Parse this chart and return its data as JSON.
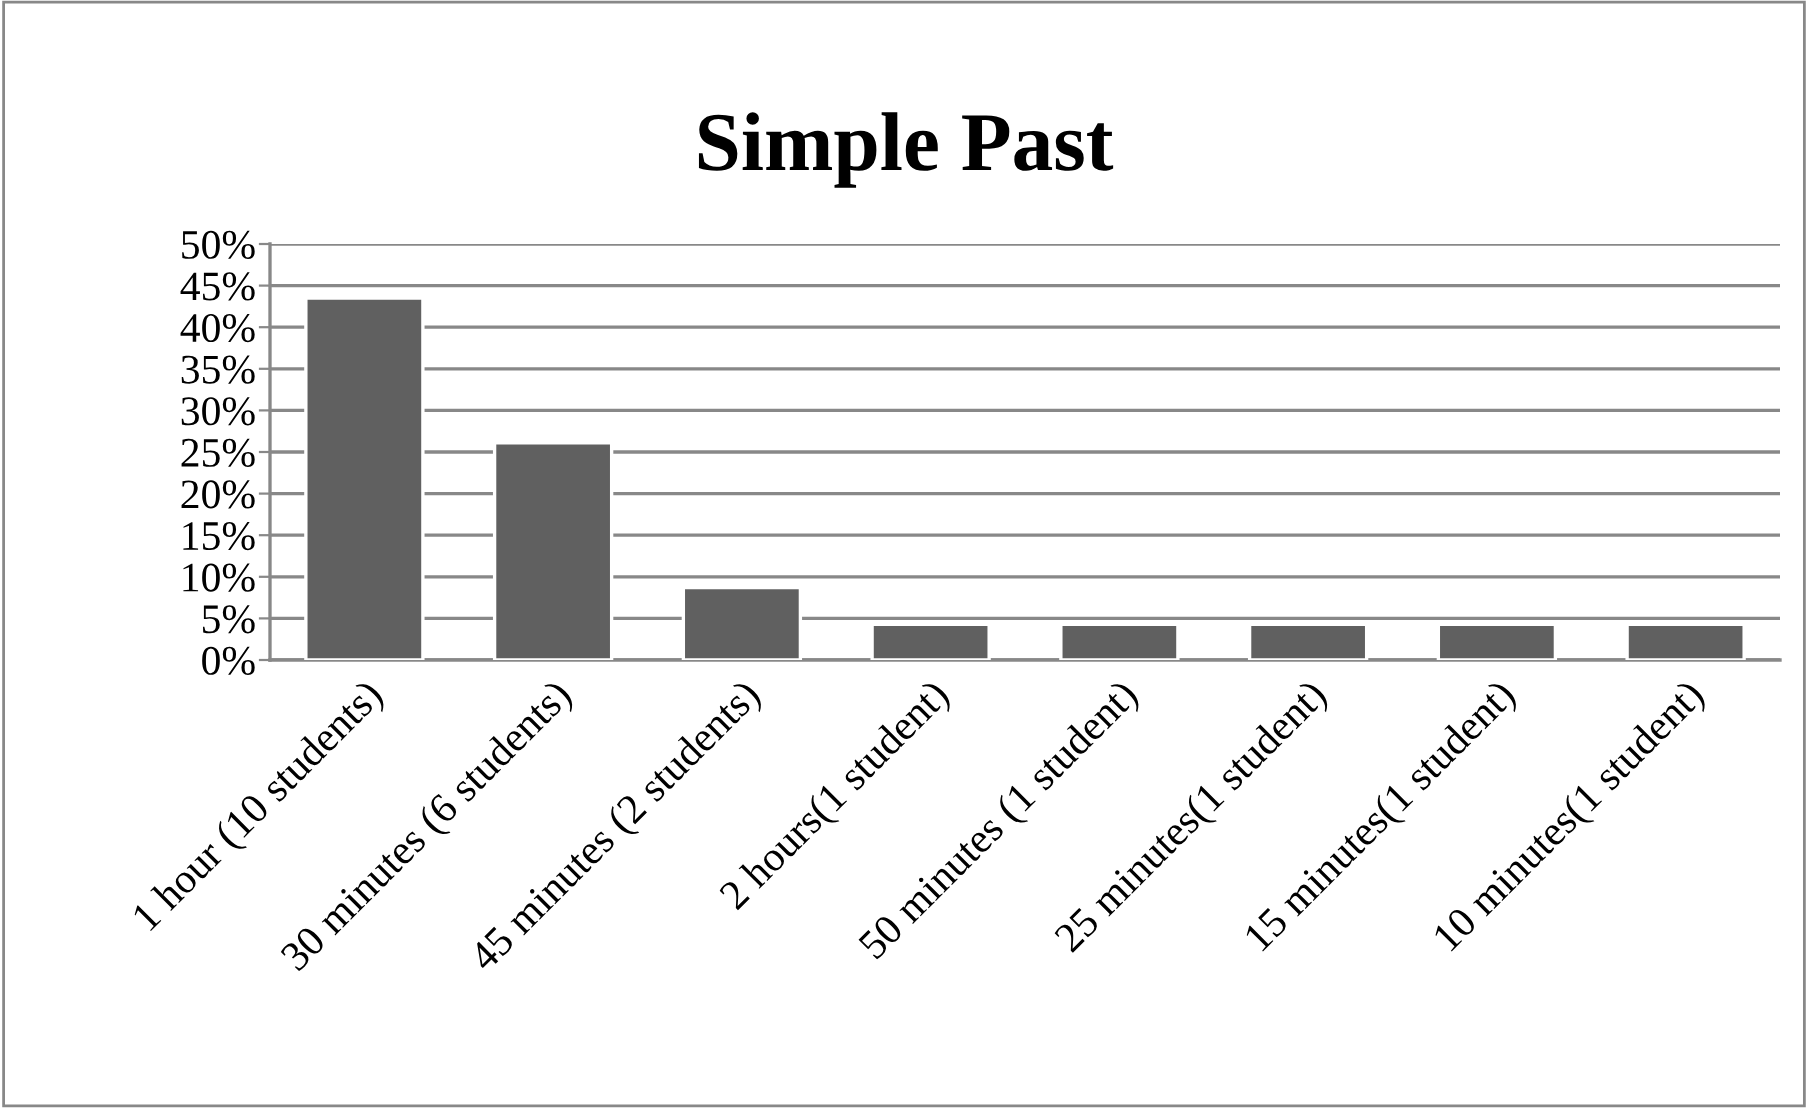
{
  "chart_data": {
    "type": "bar",
    "title": "Simple Past",
    "categories": [
      "1 hour (10 students)",
      "30 minutes (6 students)",
      "45 minutes (2 students)",
      "2 hours(1 student)",
      "50 minutes (1 student)",
      "25 minutes(1 student)",
      "15 minutes(1 student)",
      "10 minutes(1 student)"
    ],
    "values": [
      43.5,
      26.1,
      8.7,
      4.3,
      4.3,
      4.3,
      4.3,
      4.3
    ],
    "color": "#606060",
    "ylim": [
      0,
      50
    ],
    "yticks": [
      {
        "value": 0,
        "label": "0%"
      },
      {
        "value": 5,
        "label": "5%"
      },
      {
        "value": 10,
        "label": "10%"
      },
      {
        "value": 15,
        "label": "15%"
      },
      {
        "value": 20,
        "label": "20%"
      },
      {
        "value": 25,
        "label": "25%"
      },
      {
        "value": 30,
        "label": "30%"
      },
      {
        "value": 35,
        "label": "35%"
      },
      {
        "value": 40,
        "label": "40%"
      },
      {
        "value": 45,
        "label": "45%"
      },
      {
        "value": 50,
        "label": "50%"
      }
    ],
    "grid": "y",
    "legend": false
  }
}
